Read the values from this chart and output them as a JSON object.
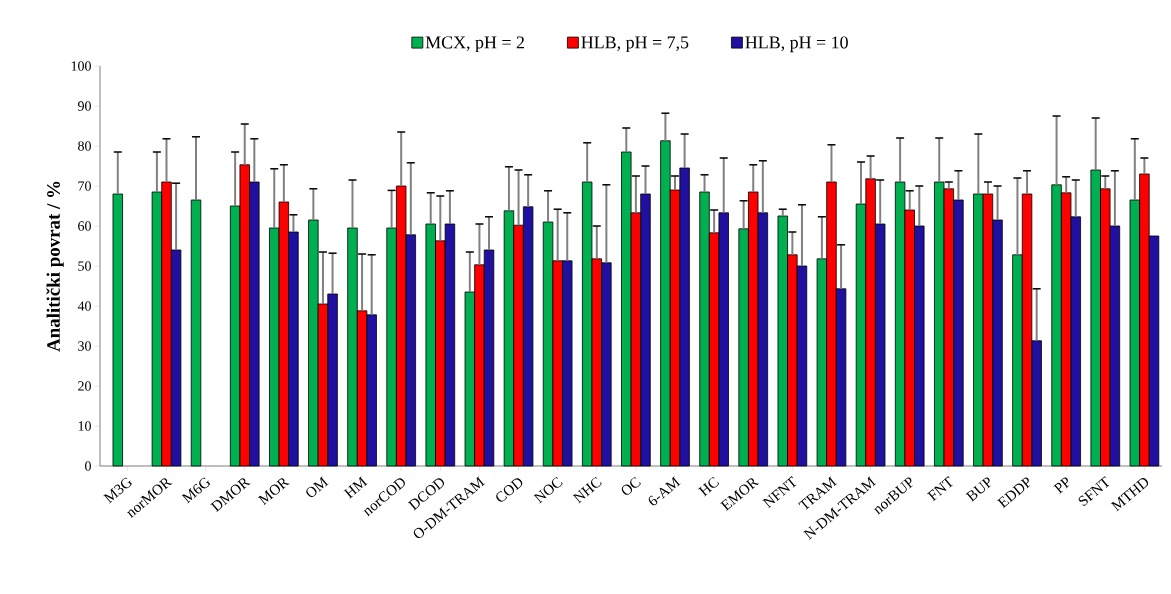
{
  "chart_data": {
    "type": "bar",
    "ylabel": "Analitički povrat / %",
    "categories": [
      "M3G",
      "norMOR",
      "M6G",
      "DMOR",
      "MOR",
      "OM",
      "HM",
      "norCOD",
      "DCOD",
      "O-DM-TRAM",
      "COD",
      "NOC",
      "NHC",
      "OC",
      "6-AM",
      "HC",
      "EMOR",
      "NFNT",
      "TRAM",
      "N-DM-TRAM",
      "norBUP",
      "FNT",
      "BUP",
      "EDDP",
      "PP",
      "SFNT",
      "MTHD"
    ],
    "series": [
      {
        "name": "MCX, pH = 2",
        "color": "#00b050",
        "values": [
          68,
          68.5,
          66.5,
          65,
          59.5,
          61.5,
          59.5,
          59.5,
          60.5,
          43.5,
          63.8,
          61,
          71,
          78.5,
          81.3,
          68.5,
          59.3,
          62.5,
          51.8,
          65.5,
          71,
          71,
          68,
          52.8,
          70.3,
          74,
          66.5
        ],
        "errors": [
          [
            68,
            78.5
          ],
          [
            68.5,
            78.5
          ],
          [
            66.5,
            82.3
          ],
          [
            65,
            78.5
          ],
          [
            59.5,
            74.3
          ],
          [
            61.5,
            69.3
          ],
          [
            59.5,
            71.5
          ],
          [
            59.5,
            68.9
          ],
          [
            60.5,
            68.3
          ],
          [
            43.5,
            53.5
          ],
          [
            63.8,
            74.8
          ],
          [
            61,
            68.8
          ],
          [
            71,
            80.8
          ],
          [
            78.5,
            84.5
          ],
          [
            81.3,
            88.2
          ],
          [
            68.5,
            72.8
          ],
          [
            59.3,
            66.3
          ],
          [
            62.5,
            64.2
          ],
          [
            51.8,
            62.3
          ],
          [
            65.5,
            76
          ],
          [
            71,
            82
          ],
          [
            71,
            82
          ],
          [
            68,
            83
          ],
          [
            52.8,
            72
          ],
          [
            70.3,
            87.5
          ],
          [
            74,
            87
          ],
          [
            66.5,
            81.8
          ]
        ]
      },
      {
        "name": "HLB, pH = 7,5",
        "color": "#ff0000",
        "values": [
          null,
          71,
          null,
          75.3,
          66,
          40.5,
          38.8,
          70,
          56.3,
          50.3,
          60.2,
          51.3,
          51.8,
          63.3,
          69,
          58.3,
          68.5,
          52.8,
          71,
          71.8,
          64,
          69.3,
          68,
          68,
          68.3,
          69.3,
          73
        ],
        "errors": [
          null,
          [
            71,
            81.8
          ],
          null,
          [
            75.3,
            85.5
          ],
          [
            66,
            75.3
          ],
          [
            40.5,
            53.5
          ],
          [
            38.8,
            53
          ],
          [
            70,
            83.5
          ],
          [
            56.3,
            67.5
          ],
          [
            50.3,
            60.5
          ],
          [
            60.2,
            74
          ],
          [
            51.3,
            64.2
          ],
          [
            51.8,
            60
          ],
          [
            63.3,
            72.5
          ],
          [
            69,
            72.5
          ],
          [
            58.3,
            64
          ],
          [
            68.5,
            75.3
          ],
          [
            52.8,
            58.5
          ],
          [
            71,
            80.3
          ],
          [
            71.8,
            77.5
          ],
          [
            64,
            68.8
          ],
          [
            69.3,
            71
          ],
          [
            68,
            71
          ],
          [
            68,
            73.8
          ],
          [
            68.3,
            72.3
          ],
          [
            69.3,
            72.5
          ],
          [
            73,
            77
          ]
        ]
      },
      {
        "name": "HLB, pH = 10",
        "color": "#2010a0",
        "values": [
          null,
          54,
          null,
          71,
          58.5,
          43,
          37.8,
          57.8,
          60.5,
          54,
          64.8,
          51.3,
          50.8,
          68,
          74.5,
          63.3,
          63.3,
          50,
          44.3,
          60.5,
          60,
          66.5,
          61.5,
          31.3,
          62.3,
          60,
          57.5
        ],
        "errors": [
          null,
          [
            54,
            70.7
          ],
          null,
          [
            71,
            81.8
          ],
          [
            58.5,
            62.8
          ],
          [
            43,
            53.2
          ],
          [
            37.8,
            52.8
          ],
          [
            57.8,
            75.8
          ],
          [
            60.5,
            68.8
          ],
          [
            54,
            62.3
          ],
          [
            64.8,
            72.8
          ],
          [
            51.3,
            63.3
          ],
          [
            50.8,
            70.3
          ],
          [
            68,
            75
          ],
          [
            74.5,
            83
          ],
          [
            63.3,
            77
          ],
          [
            63.3,
            76.3
          ],
          [
            50,
            65.3
          ],
          [
            44.3,
            55.3
          ],
          [
            60.5,
            71.5
          ],
          [
            60,
            70
          ],
          [
            66.5,
            73.8
          ],
          [
            61.5,
            70
          ],
          [
            31.3,
            44.3
          ],
          [
            62.3,
            71.5
          ],
          [
            60,
            73.8
          ],
          null
        ]
      }
    ],
    "ylim": [
      0,
      100
    ],
    "yticks": [
      0,
      10,
      20,
      30,
      40,
      50,
      60,
      70,
      80,
      90,
      100
    ],
    "grid": false,
    "legend": "top"
  }
}
